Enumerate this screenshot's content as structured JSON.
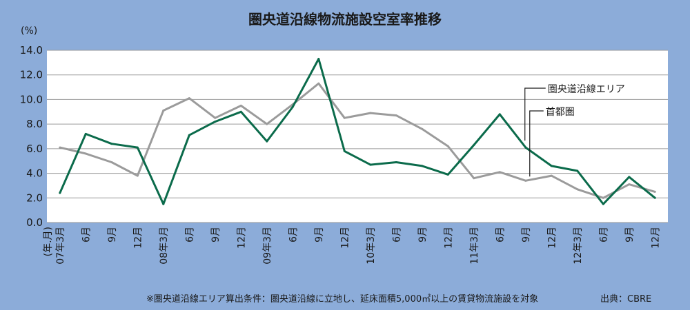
{
  "chart_data": {
    "type": "line",
    "title": "圏央道沿線物流施設空室率推移",
    "ylabel": "(%)",
    "xlabel": "(年.月)",
    "ylim": [
      0,
      14
    ],
    "yticks": [
      "0.0",
      "2.0",
      "4.0",
      "6.0",
      "8.0",
      "10.0",
      "12.0",
      "14.0"
    ],
    "grid": true,
    "categories": [
      "07年3月",
      "6月",
      "9月",
      "12月",
      "08年3月",
      "6月",
      "9月",
      "12月",
      "09年3月",
      "6月",
      "9月",
      "12月",
      "10年3月",
      "6月",
      "9月",
      "12月",
      "11年3月",
      "6月",
      "9月",
      "12月",
      "12年3月",
      "6月",
      "9月",
      "12月"
    ],
    "series": [
      {
        "name": "圏央道沿線エリア",
        "color": "#0b6b4b",
        "values": [
          2.4,
          7.2,
          6.4,
          6.1,
          1.5,
          7.1,
          8.2,
          9.0,
          6.6,
          9.4,
          13.3,
          5.8,
          4.7,
          4.9,
          4.6,
          3.9,
          6.3,
          8.8,
          6.1,
          4.6,
          4.2,
          1.5,
          3.7,
          2.0
        ]
      },
      {
        "name": "首都圏",
        "color": "#9b9b9b",
        "values": [
          6.1,
          5.6,
          4.9,
          3.8,
          9.1,
          10.1,
          8.5,
          9.5,
          8.0,
          9.6,
          11.3,
          8.5,
          8.9,
          8.7,
          7.6,
          6.2,
          3.6,
          4.1,
          3.4,
          3.8,
          2.7,
          2.0,
          3.1,
          2.5
        ]
      }
    ]
  },
  "note": "※圏央道沿線エリア算出条件：圏央道沿線に立地し、延床面積5,000㎡以上の賃貸物流施設を対象",
  "source": "出典：CBRE"
}
